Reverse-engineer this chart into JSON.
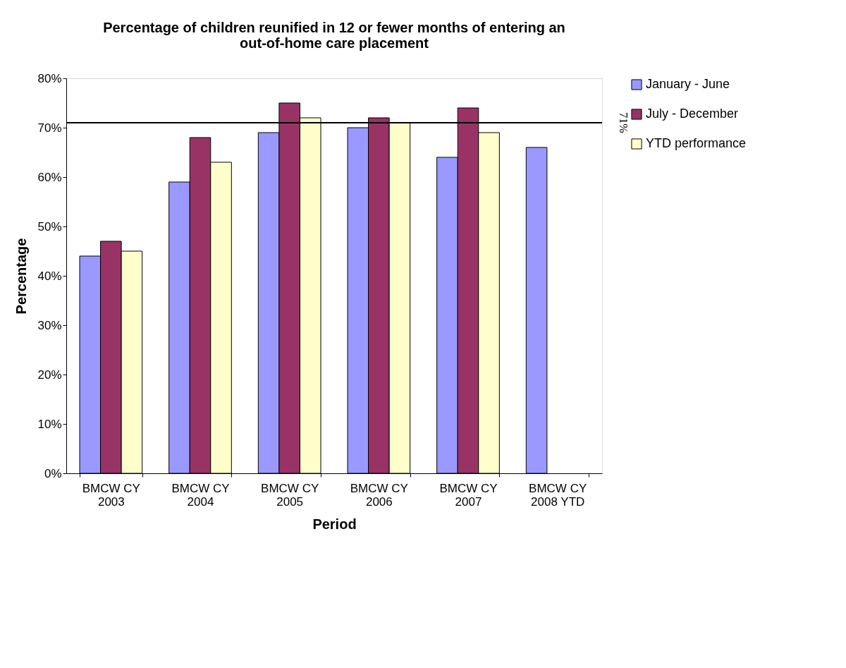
{
  "chart_data": {
    "type": "bar",
    "title": [
      "Percentage of children reunified in 12 or fewer months of entering an",
      "out-of-home care placement"
    ],
    "xlabel": "Period",
    "ylabel": "Percentage",
    "categories": [
      "BMCW CY 2003",
      "BMCW CY 2004",
      "BMCW CY 2005",
      "BMCW CY 2006",
      "BMCW CY 2007",
      "BMCW CY 2008 YTD"
    ],
    "series": [
      {
        "name": "January - June",
        "color": "#9999ff",
        "values": [
          44,
          59,
          69,
          70,
          64,
          66
        ]
      },
      {
        "name": "July - December",
        "color": "#993366",
        "values": [
          47,
          68,
          75,
          72,
          74,
          null
        ]
      },
      {
        "name": "YTD performance",
        "color": "#ffffcc",
        "values": [
          45,
          63,
          72,
          71,
          69,
          null
        ]
      }
    ],
    "ylim": [
      0,
      80
    ],
    "yticks": [
      {
        "value": 0,
        "label": "0%"
      },
      {
        "value": 10,
        "label": "10%"
      },
      {
        "value": 20,
        "label": "20%"
      },
      {
        "value": 30,
        "label": "30%"
      },
      {
        "value": 40,
        "label": "40%"
      },
      {
        "value": 50,
        "label": "50%"
      },
      {
        "value": 60,
        "label": "60%"
      },
      {
        "value": 70,
        "label": "70%"
      },
      {
        "value": 80,
        "label": "80%"
      }
    ],
    "ref_lines": [
      {
        "axis": "y",
        "value": 71,
        "label": "71%",
        "color": "#000000"
      }
    ],
    "grid": false,
    "legend": "right"
  }
}
